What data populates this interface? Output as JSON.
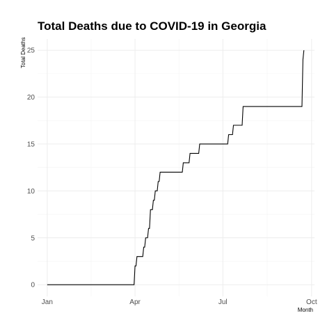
{
  "chart_data": {
    "type": "line",
    "title": "Total Deaths due to COVID-19 in Georgia",
    "xlabel": "Month",
    "ylabel": "Total Deaths",
    "x_ticks": [
      {
        "label": "Jan",
        "value": "2020-01-01"
      },
      {
        "label": "Apr",
        "value": "2020-04-01"
      },
      {
        "label": "Jul",
        "value": "2020-07-01"
      },
      {
        "label": "Oct",
        "value": "2020-10-01"
      }
    ],
    "y_ticks": [
      0,
      5,
      10,
      15,
      20,
      25
    ],
    "xlim": [
      "2019-12-22",
      "2020-10-04"
    ],
    "ylim": [
      -1.25,
      26.2
    ],
    "grid": true,
    "legend": "none",
    "series": [
      {
        "color": "#000000",
        "x": [
          "2020-01-01",
          "2020-03-31",
          "2020-04-01",
          "2020-04-02",
          "2020-04-03",
          "2020-04-09",
          "2020-04-10",
          "2020-04-11",
          "2020-04-12",
          "2020-04-14",
          "2020-04-15",
          "2020-04-16",
          "2020-04-17",
          "2020-04-19",
          "2020-04-20",
          "2020-04-21",
          "2020-04-22",
          "2020-04-24",
          "2020-04-25",
          "2020-04-26",
          "2020-04-27",
          "2020-05-20",
          "2020-05-21",
          "2020-05-27",
          "2020-05-28",
          "2020-06-06",
          "2020-06-07",
          "2020-07-06",
          "2020-07-07",
          "2020-07-11",
          "2020-07-12",
          "2020-07-21",
          "2020-07-22",
          "2020-09-21",
          "2020-09-22",
          "2020-09-23"
        ],
        "y": [
          0,
          0,
          2,
          2,
          3,
          3,
          4,
          4,
          5,
          5,
          6,
          6,
          8,
          8,
          9,
          9,
          10,
          10,
          11,
          11,
          12,
          12,
          13,
          13,
          14,
          14,
          15,
          15,
          16,
          16,
          17,
          17,
          19,
          19,
          24,
          25
        ]
      }
    ]
  }
}
